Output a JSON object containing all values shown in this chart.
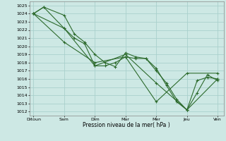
{
  "title": "",
  "xlabel": "Pression niveau de la mer( hPa )",
  "x_labels": [
    "Ditoun",
    "Sam",
    "Dim",
    "Mar",
    "Mer",
    "Jeu",
    "Ven"
  ],
  "x_ticks": [
    0,
    1.5,
    3,
    4.5,
    6,
    7.5,
    9
  ],
  "ylim": [
    1011.5,
    1025.5
  ],
  "yticks": [
    1012,
    1013,
    1014,
    1015,
    1016,
    1017,
    1018,
    1019,
    1020,
    1021,
    1022,
    1023,
    1024,
    1025
  ],
  "background_color": "#cde8e4",
  "grid_color": "#a8d0cc",
  "line_color": "#2d6b2d",
  "series": [
    {
      "x": [
        0,
        0.5,
        1.5,
        2.0,
        2.5,
        3.0,
        3.5,
        4.0,
        4.5,
        5.0,
        5.5,
        6.0,
        6.5,
        7.0,
        7.5,
        8.0,
        8.5,
        9.0
      ],
      "y": [
        1024.0,
        1024.8,
        1023.8,
        1021.5,
        1020.5,
        1019.0,
        1018.0,
        1017.5,
        1019.2,
        1018.7,
        1018.5,
        1017.3,
        1015.2,
        1013.2,
        1012.2,
        1014.3,
        1016.5,
        1015.8
      ]
    },
    {
      "x": [
        0,
        0.5,
        1.5,
        2.0,
        2.5,
        3.0,
        3.5,
        4.0,
        4.5,
        5.0,
        5.5,
        6.0,
        6.5,
        7.0,
        7.5,
        8.0,
        8.5,
        9.0
      ],
      "y": [
        1024.0,
        1024.8,
        1022.2,
        1021.0,
        1020.3,
        1017.6,
        1017.6,
        1018.0,
        1018.7,
        1018.5,
        1018.5,
        1017.0,
        1015.5,
        1013.5,
        1012.2,
        1015.8,
        1016.2,
        1016.0
      ]
    },
    {
      "x": [
        0,
        1.5,
        3.0,
        4.5,
        6.0,
        7.5,
        9.0
      ],
      "y": [
        1024.0,
        1022.2,
        1017.6,
        1019.0,
        1015.5,
        1012.2,
        1016.0
      ]
    },
    {
      "x": [
        0,
        1.5,
        3.0,
        4.5,
        6.0,
        7.5,
        9.0
      ],
      "y": [
        1024.0,
        1020.5,
        1018.0,
        1018.7,
        1013.2,
        1016.7,
        1016.7
      ]
    }
  ],
  "marker": "+",
  "marker_size": 3,
  "linewidth": 0.8,
  "figsize": [
    3.2,
    2.0
  ],
  "dpi": 100
}
